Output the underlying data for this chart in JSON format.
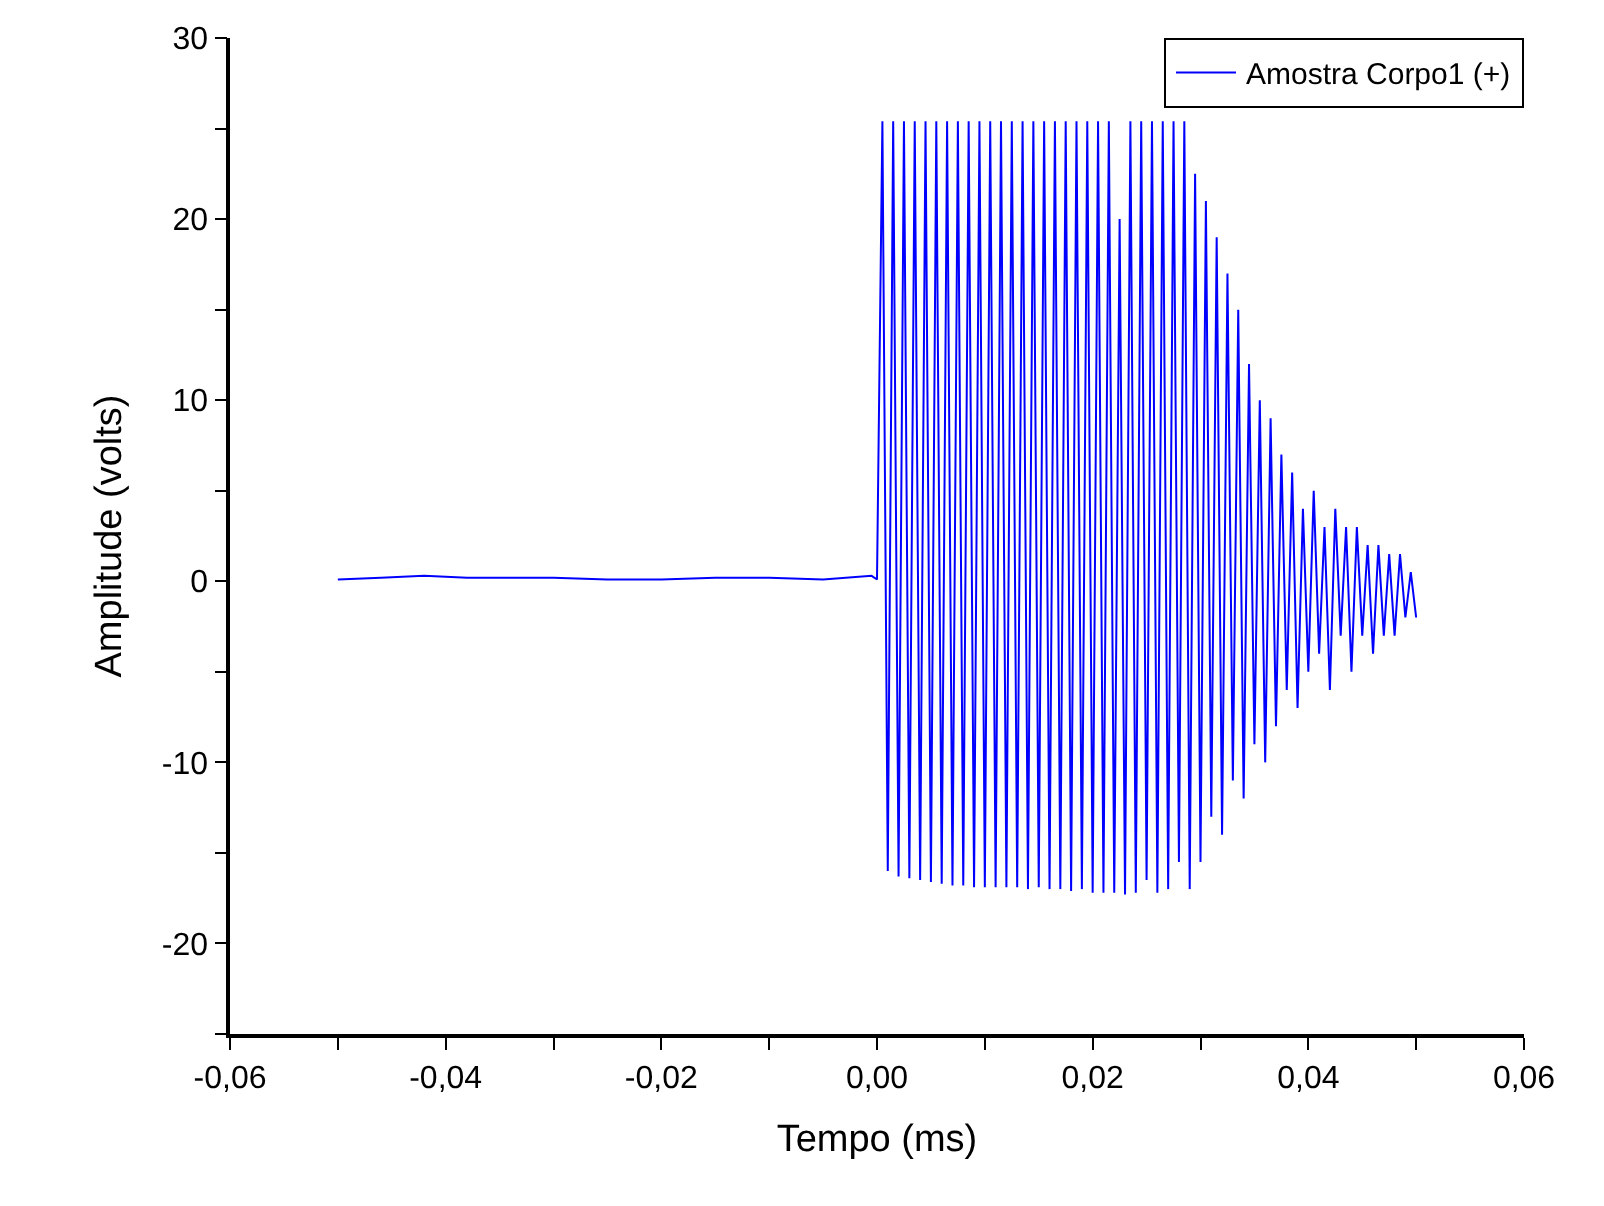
{
  "chart_data": {
    "type": "line",
    "xlabel": "Tempo (ms)",
    "ylabel": "Amplitude (volts)",
    "xlim": [
      -0.06,
      0.06
    ],
    "ylim": [
      -25,
      30
    ],
    "xticks": [
      {
        "value": -0.06,
        "label": "-0,06"
      },
      {
        "value": -0.05,
        "label": null
      },
      {
        "value": -0.04,
        "label": "-0,04"
      },
      {
        "value": -0.03,
        "label": null
      },
      {
        "value": -0.02,
        "label": "-0,02"
      },
      {
        "value": -0.01,
        "label": null
      },
      {
        "value": 0,
        "label": "0,00"
      },
      {
        "value": 0.01,
        "label": null
      },
      {
        "value": 0.02,
        "label": "0,02"
      },
      {
        "value": 0.03,
        "label": null
      },
      {
        "value": 0.04,
        "label": "0,04"
      },
      {
        "value": 0.05,
        "label": null
      },
      {
        "value": 0.06,
        "label": "0,06"
      }
    ],
    "yticks": [
      {
        "value": -25,
        "label": null
      },
      -20,
      {
        "value": -15,
        "label": null
      },
      -10,
      {
        "value": -5,
        "label": null
      },
      0,
      {
        "value": 5,
        "label": null
      },
      10,
      {
        "value": 15,
        "label": null
      },
      20,
      {
        "value": 25,
        "label": null
      },
      30
    ],
    "legend": "top right",
    "marker": "none",
    "line_style": "solid",
    "series": [
      {
        "name": "Amostra Corpo1 (+)",
        "color": "#0000ff",
        "x": [
          -0.05,
          -0.046,
          -0.042,
          -0.038,
          -0.034,
          -0.03,
          -0.025,
          -0.02,
          -0.015,
          -0.01,
          -0.005,
          -0.0005,
          0,
          0.0005,
          0.001,
          0.0015,
          0.002,
          0.0025,
          0.003,
          0.0035,
          0.004,
          0.0045,
          0.005,
          0.0055,
          0.006,
          0.0065,
          0.007,
          0.0075,
          0.008,
          0.0085,
          0.009,
          0.0095,
          0.01,
          0.0105,
          0.011,
          0.0115,
          0.012,
          0.0125,
          0.013,
          0.0135,
          0.014,
          0.0145,
          0.015,
          0.0155,
          0.016,
          0.0165,
          0.017,
          0.0175,
          0.018,
          0.0185,
          0.019,
          0.0195,
          0.02,
          0.0205,
          0.021,
          0.0215,
          0.022,
          0.0225,
          0.023,
          0.0235,
          0.024,
          0.0245,
          0.025,
          0.0255,
          0.026,
          0.0265,
          0.027,
          0.0275,
          0.028,
          0.0285,
          0.029,
          0.0295,
          0.03,
          0.0305,
          0.031,
          0.0315,
          0.032,
          0.0325,
          0.033,
          0.0335,
          0.034,
          0.0345,
          0.035,
          0.0355,
          0.036,
          0.0365,
          0.037,
          0.0375,
          0.038,
          0.0385,
          0.039,
          0.0395,
          0.04,
          0.0405,
          0.041,
          0.0415,
          0.042,
          0.0425,
          0.043,
          0.0435,
          0.044,
          0.0445,
          0.045,
          0.0455,
          0.046,
          0.0465,
          0.047,
          0.0475,
          0.048,
          0.0485,
          0.049,
          0.0495,
          0.05
        ],
        "values": [
          0.1,
          0.2,
          0.3,
          0.2,
          0.2,
          0.2,
          0.1,
          0.1,
          0.2,
          0.2,
          0.1,
          0.3,
          0.1,
          25.4,
          -16.0,
          25.4,
          -16.3,
          25.4,
          -16.4,
          25.4,
          -16.5,
          25.4,
          -16.6,
          25.4,
          -16.7,
          25.4,
          -16.8,
          25.4,
          -16.8,
          25.4,
          -16.9,
          25.4,
          -16.9,
          25.4,
          -16.9,
          25.4,
          -16.9,
          25.4,
          -16.9,
          25.4,
          -17.0,
          25.4,
          -16.9,
          25.4,
          -17.0,
          25.4,
          -17.0,
          25.4,
          -17.1,
          25.4,
          -17.0,
          25.4,
          -17.2,
          25.4,
          -17.2,
          25.4,
          -17.2,
          20.0,
          -17.3,
          25.4,
          -17.2,
          25.4,
          -16.5,
          25.4,
          -17.2,
          25.4,
          -17.0,
          25.4,
          -15.5,
          25.4,
          -17.0,
          22.5,
          -15.5,
          21.0,
          -13.0,
          19.0,
          -14.0,
          17.0,
          -11.0,
          15.0,
          -12.0,
          12.0,
          -9.0,
          10.0,
          -10.0,
          9.0,
          -8.0,
          7.0,
          -6.0,
          6.0,
          -7.0,
          4.0,
          -5.0,
          5.0,
          -4.0,
          3.0,
          -6.0,
          4.0,
          -3.0,
          3.0,
          -5.0,
          3.0,
          -3.0,
          2.0,
          -4.0,
          2.0,
          -3.0,
          1.5,
          -3.0,
          1.5,
          -2.0,
          0.5,
          -2.0
        ]
      }
    ]
  }
}
